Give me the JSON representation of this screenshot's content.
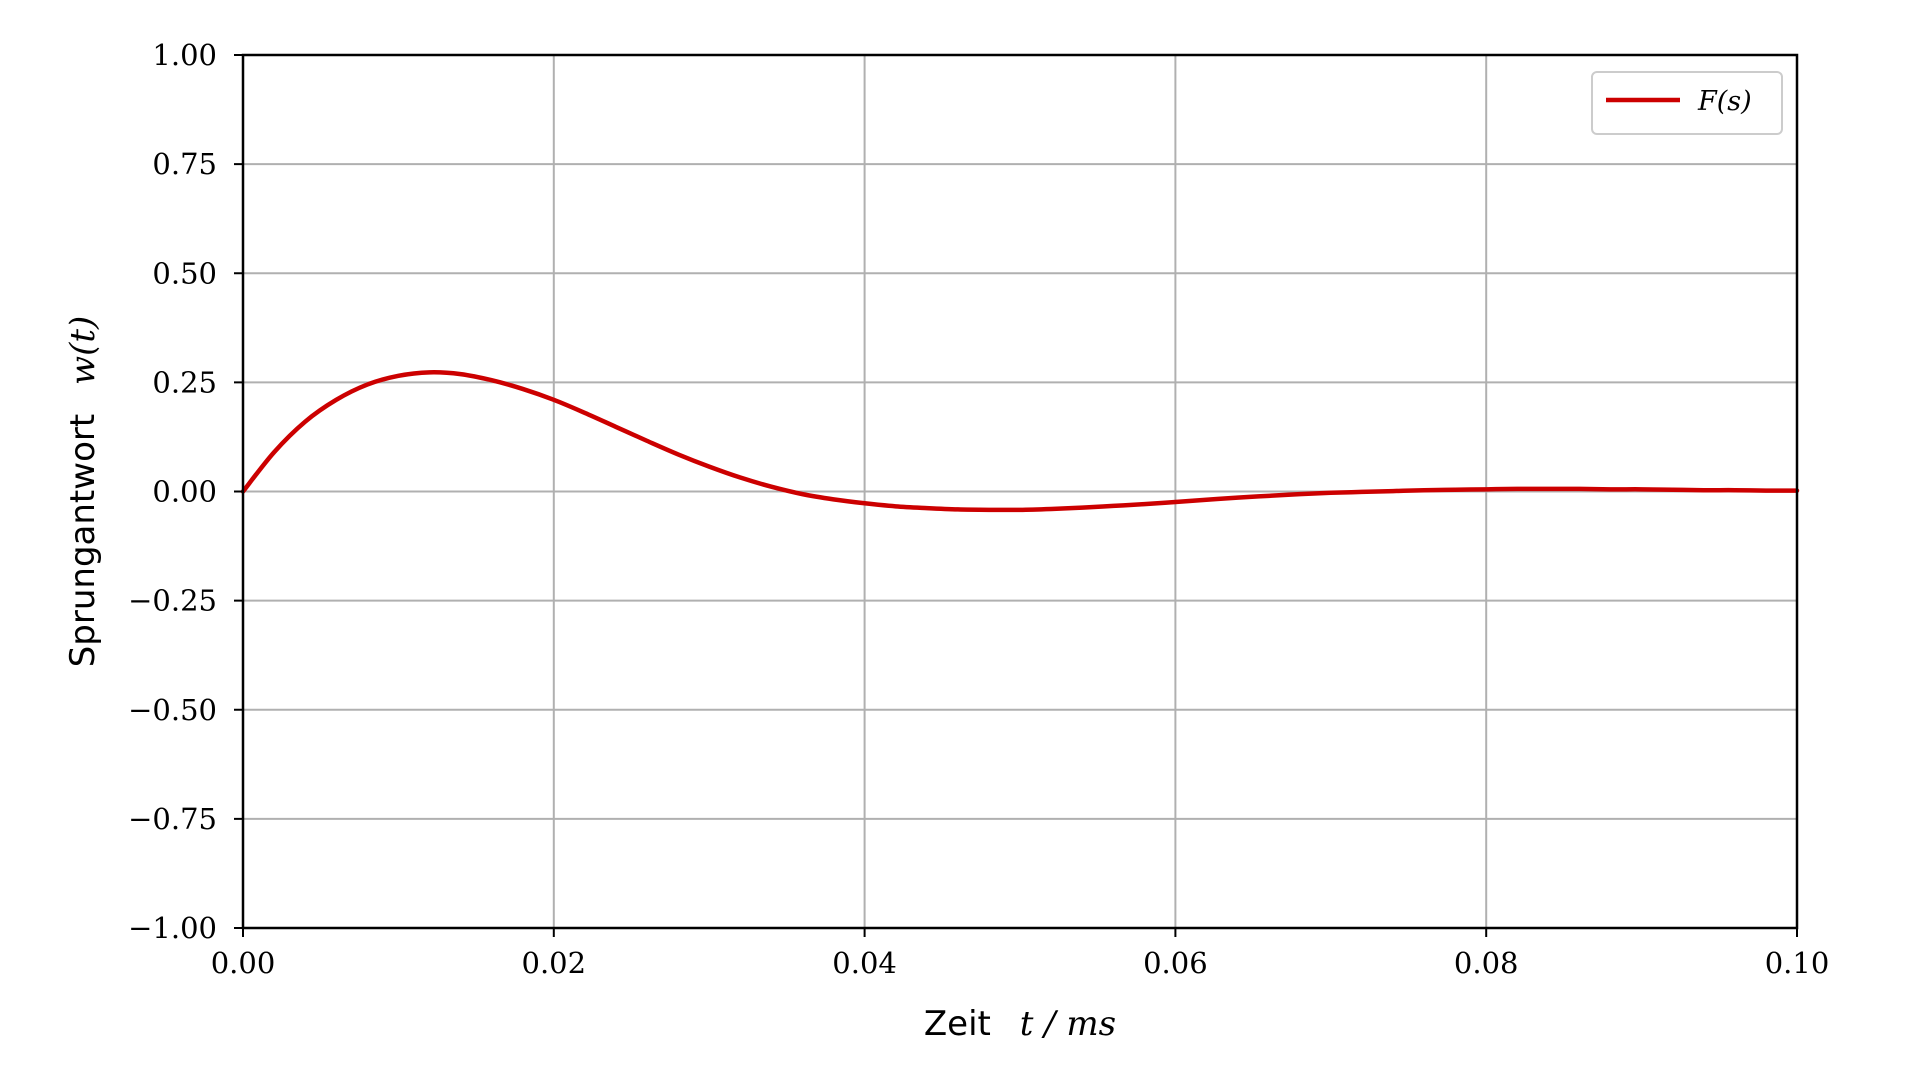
{
  "chart_data": {
    "type": "line",
    "xlabel": "Zeit  t / ms",
    "ylabel": "Sprungantwort  w(t)",
    "xlabel_text": "Zeit",
    "xlabel_math": "t / ms",
    "ylabel_text": "Sprungantwort",
    "ylabel_math": "w(t)",
    "xlim": [
      0.0,
      0.1
    ],
    "ylim": [
      -1.0,
      1.0
    ],
    "xticks": [
      "0.00",
      "0.02",
      "0.04",
      "0.06",
      "0.08",
      "0.10"
    ],
    "yticks": [
      "1.00",
      "0.75",
      "0.50",
      "0.25",
      "0.00",
      "−0.25",
      "−0.50",
      "−0.75",
      "−1.00"
    ],
    "grid": true,
    "legend_position": "top-right",
    "series": [
      {
        "name": "F(s)",
        "color": "#cc0000",
        "x": [
          0.0,
          0.002,
          0.004,
          0.006,
          0.008,
          0.01,
          0.012,
          0.014,
          0.016,
          0.018,
          0.02,
          0.022,
          0.024,
          0.026,
          0.028,
          0.03,
          0.032,
          0.034,
          0.036,
          0.038,
          0.04,
          0.042,
          0.044,
          0.046,
          0.048,
          0.05,
          0.052,
          0.054,
          0.056,
          0.058,
          0.06,
          0.062,
          0.064,
          0.066,
          0.068,
          0.07,
          0.072,
          0.074,
          0.076,
          0.078,
          0.08,
          0.082,
          0.084,
          0.086,
          0.088,
          0.09,
          0.092,
          0.094,
          0.096,
          0.098,
          0.1
        ],
        "y": [
          0.0,
          0.09,
          0.16,
          0.21,
          0.245,
          0.265,
          0.273,
          0.269,
          0.255,
          0.235,
          0.21,
          0.18,
          0.148,
          0.116,
          0.085,
          0.057,
          0.032,
          0.011,
          -0.006,
          -0.018,
          -0.027,
          -0.034,
          -0.038,
          -0.041,
          -0.042,
          -0.042,
          -0.04,
          -0.037,
          -0.033,
          -0.029,
          -0.024,
          -0.019,
          -0.014,
          -0.01,
          -0.006,
          -0.003,
          -0.001,
          0.001,
          0.003,
          0.004,
          0.005,
          0.006,
          0.006,
          0.006,
          0.005,
          0.005,
          0.004,
          0.003,
          0.003,
          0.002,
          0.002
        ]
      }
    ]
  }
}
